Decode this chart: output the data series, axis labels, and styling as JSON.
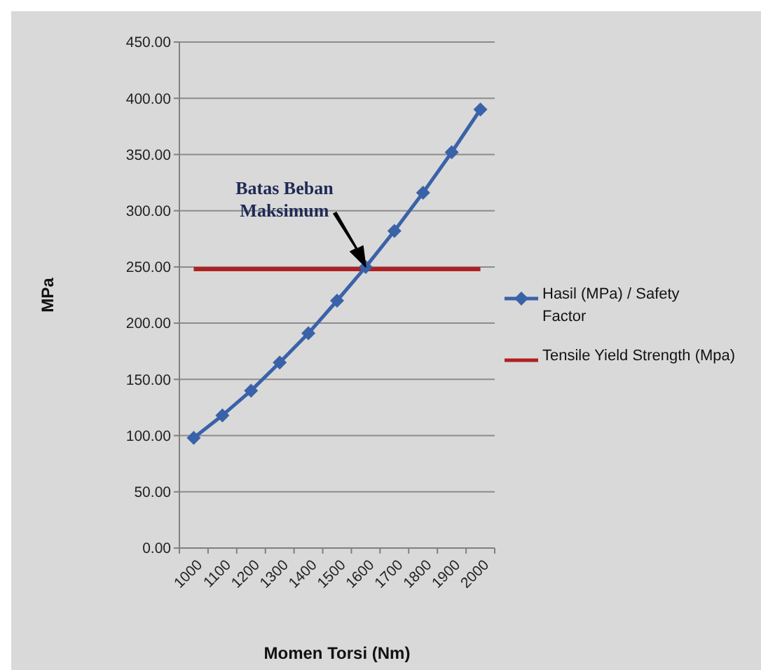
{
  "chart_data": {
    "type": "line",
    "xlabel": "Momen Torsi (Nm)",
    "ylabel": "MPa",
    "categories": [
      "1000",
      "1100",
      "1200",
      "1300",
      "1400",
      "1500",
      "1600",
      "1700",
      "1800",
      "1900",
      "2000"
    ],
    "series": [
      {
        "name": "Hasil (MPa) / Safety Factor",
        "color": "#3a62a8",
        "marker": "diamond",
        "values": [
          98,
          118,
          140,
          165,
          191,
          220,
          250,
          282,
          316,
          352,
          390
        ]
      },
      {
        "name": "Tensile Yield Strength (Mpa)",
        "color": "#b02020",
        "marker": "none",
        "values": [
          248,
          248,
          248,
          248,
          248,
          248,
          248,
          248,
          248,
          248,
          248
        ]
      }
    ],
    "ylim": [
      0,
      450
    ],
    "yticks": [
      {
        "value": 0,
        "label": "0.00"
      },
      {
        "value": 50,
        "label": "50.00"
      },
      {
        "value": 100,
        "label": "100.00"
      },
      {
        "value": 150,
        "label": "150.00"
      },
      {
        "value": 200,
        "label": "200.00"
      },
      {
        "value": 250,
        "label": "250.00"
      },
      {
        "value": 300,
        "label": "300.00"
      },
      {
        "value": 350,
        "label": "350.00"
      },
      {
        "value": 400,
        "label": "400.00"
      },
      {
        "value": 450,
        "label": "450.00"
      }
    ],
    "grid": "y",
    "legend": "right",
    "annotations": [
      {
        "text": "Batas Beban Maksimum",
        "x": "1600",
        "y": 250
      }
    ]
  }
}
